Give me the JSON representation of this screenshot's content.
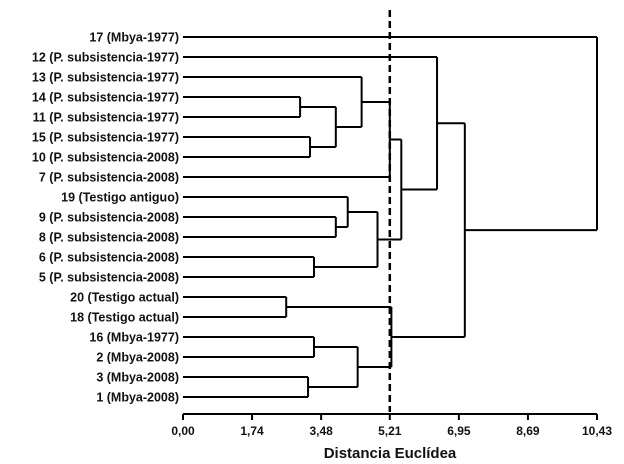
{
  "chart_data": {
    "type": "dendrogram",
    "xlabel": "Distancia Euclídea",
    "xlim": [
      0,
      10.43
    ],
    "xticks": [
      "0,00",
      "1,74",
      "3,48",
      "5,21",
      "6,95",
      "8,69",
      "10,43"
    ],
    "xtick_values": [
      0,
      1.74,
      3.48,
      5.21,
      6.95,
      8.69,
      10.43
    ],
    "cut_value": 5.21,
    "leaves": [
      "17 (Mbya-1977)",
      "12 (P. subsistencia-1977)",
      "13 (P. subsistencia-1977)",
      "14 (P. subsistencia-1977)",
      "11 (P. subsistencia-1977)",
      "15 (P. subsistencia-1977)",
      "10 (P. subsistencia-2008)",
      "7 (P. subsistencia-2008)",
      "19 (Testigo antiguo)",
      "9 (P. subsistencia-2008)",
      "8 (P. subsistencia-2008)",
      "6 (P. subsistencia-2008)",
      "5 (P. subsistencia-2008)",
      "20 (Testigo actual)",
      "18 (Testigo actual)",
      "16 (Mbya-1977)",
      "2 (Mbya-2008)",
      "3 (Mbya-2008)",
      "1 (Mbya-2008)"
    ],
    "merges": [
      {
        "id": "A",
        "children": [
          "14 (P. subsistencia-1977)",
          "11 (P. subsistencia-1977)"
        ],
        "height": 2.95
      },
      {
        "id": "B",
        "children": [
          "15 (P. subsistencia-1977)",
          "10 (P. subsistencia-2008)"
        ],
        "height": 3.2
      },
      {
        "id": "C",
        "children": [
          "A",
          "B"
        ],
        "height": 3.85
      },
      {
        "id": "D",
        "children": [
          "13 (P. subsistencia-1977)",
          "C"
        ],
        "height": 4.5
      },
      {
        "id": "E",
        "children": [
          "D",
          "7 (P. subsistencia-2008)"
        ],
        "height": 5.21
      },
      {
        "id": "F",
        "children": [
          "9 (P. subsistencia-2008)",
          "8 (P. subsistencia-2008)"
        ],
        "height": 3.85
      },
      {
        "id": "G",
        "children": [
          "19 (Testigo antiguo)",
          "F"
        ],
        "height": 4.15
      },
      {
        "id": "H",
        "children": [
          "6 (P. subsistencia-2008)",
          "5 (P. subsistencia-2008)"
        ],
        "height": 3.3
      },
      {
        "id": "I",
        "children": [
          "G",
          "H"
        ],
        "height": 4.9
      },
      {
        "id": "J",
        "children": [
          "E",
          "I"
        ],
        "height": 5.5
      },
      {
        "id": "K",
        "children": [
          "20 (Testigo actual)",
          "18 (Testigo actual)"
        ],
        "height": 2.6
      },
      {
        "id": "L",
        "children": [
          "16 (Mbya-1977)",
          "2 (Mbya-2008)"
        ],
        "height": 3.3
      },
      {
        "id": "M",
        "children": [
          "3 (Mbya-2008)",
          "1 (Mbya-2008)"
        ],
        "height": 3.15
      },
      {
        "id": "N",
        "children": [
          "L",
          "M"
        ],
        "height": 4.4
      },
      {
        "id": "O",
        "children": [
          "K",
          "N"
        ],
        "height": 5.25
      },
      {
        "id": "P",
        "children": [
          "O"
        ],
        "height": 5.3
      },
      {
        "id": "Q",
        "children": [
          "12 (P. subsistencia-1977)",
          "J"
        ],
        "height": 6.4
      },
      {
        "id": "R",
        "children": [
          "Q",
          "P"
        ],
        "height": 7.1
      },
      {
        "id": "S",
        "children": [
          "17 (Mbya-1977)",
          "R"
        ],
        "height": 10.43
      }
    ]
  }
}
